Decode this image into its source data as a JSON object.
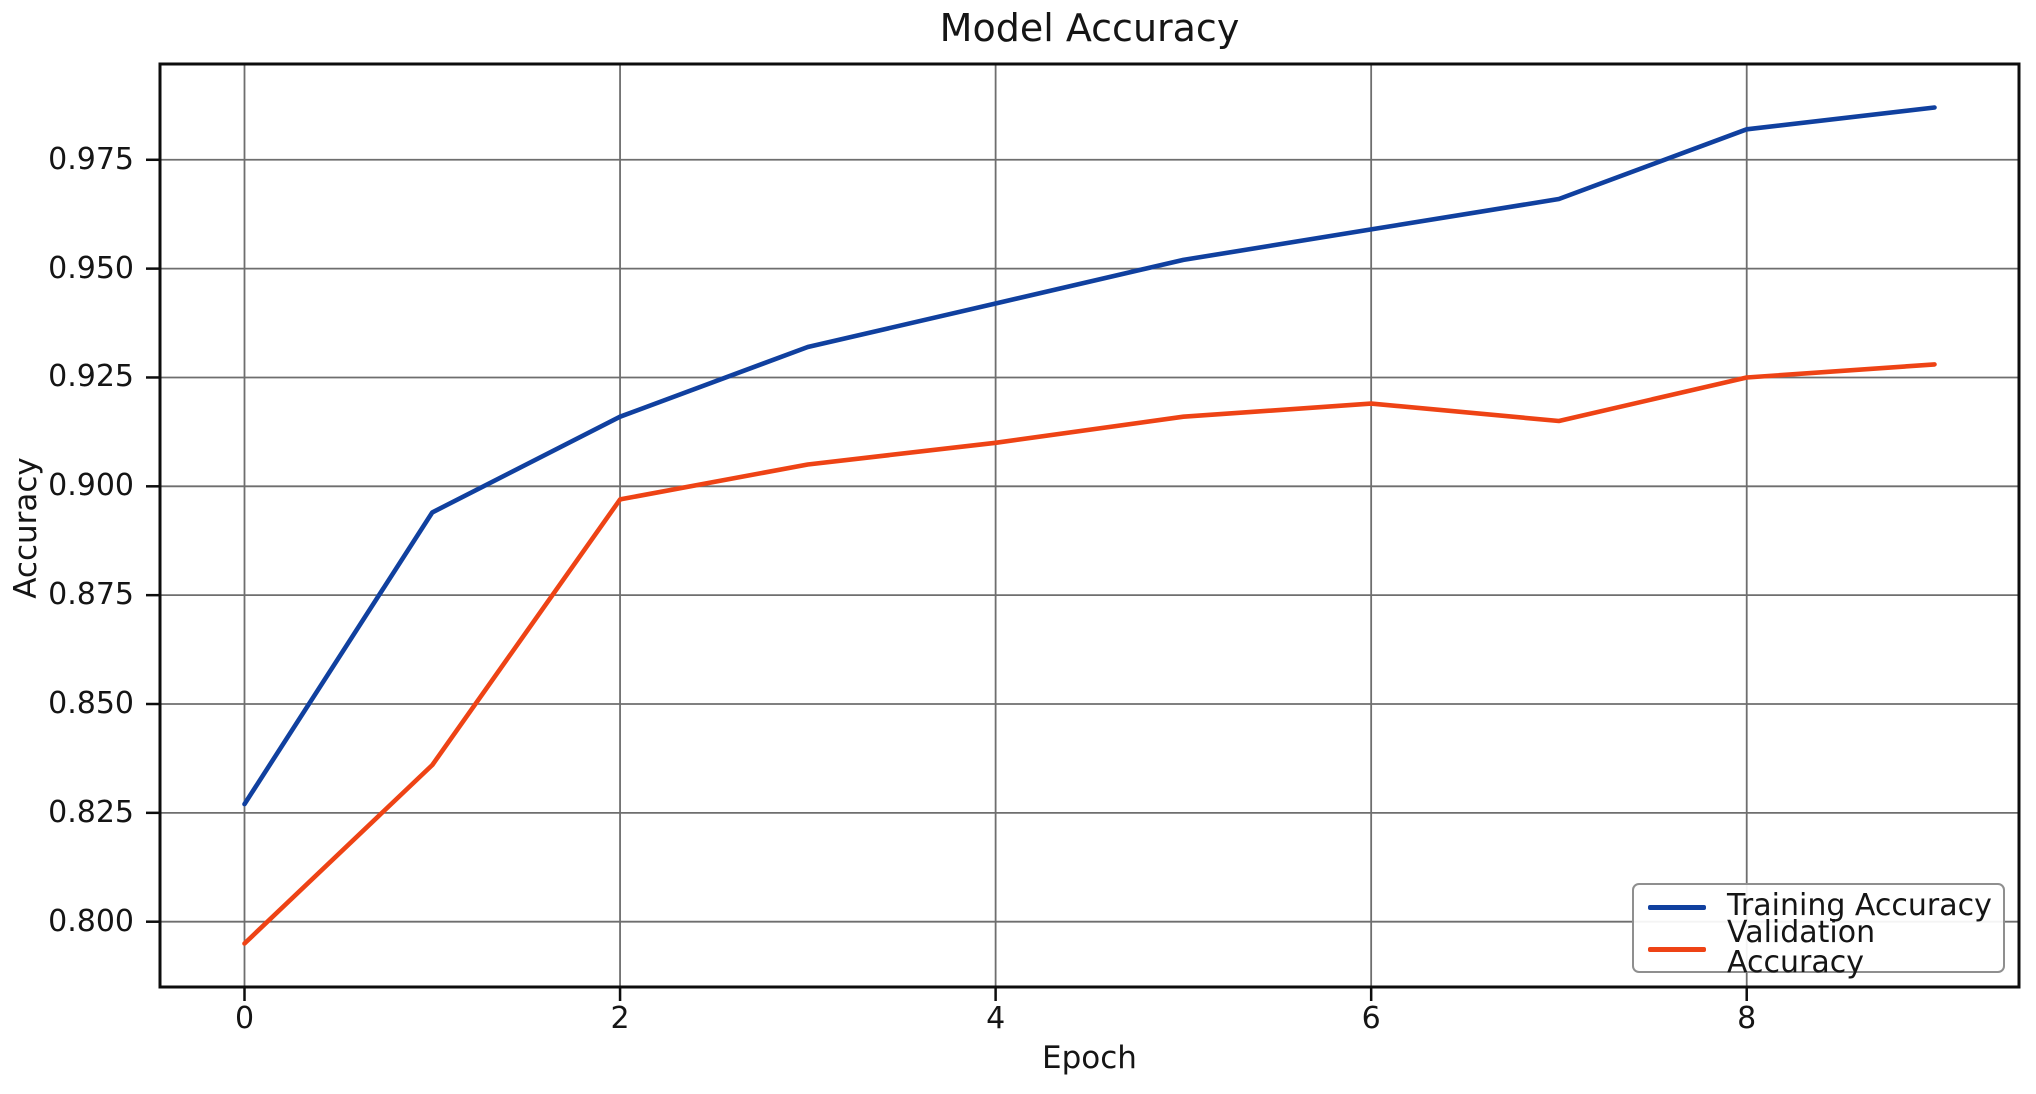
{
  "chart_data": {
    "type": "line",
    "title": "Model Accuracy",
    "xlabel": "Epoch",
    "ylabel": "Accuracy",
    "x": [
      0,
      1,
      2,
      3,
      4,
      5,
      6,
      7,
      8,
      9
    ],
    "series": [
      {
        "name": "Training Accuracy",
        "color": "#10409f",
        "values": [
          0.827,
          0.894,
          0.916,
          0.932,
          0.942,
          0.952,
          0.959,
          0.966,
          0.982,
          0.987
        ]
      },
      {
        "name": "Validation Accuracy",
        "color": "#ee4315",
        "values": [
          0.795,
          0.836,
          0.897,
          0.905,
          0.91,
          0.916,
          0.919,
          0.915,
          0.925,
          0.928
        ]
      }
    ],
    "xtick_values": [
      0,
      2,
      4,
      6,
      8
    ],
    "xtick_labels": [
      "0",
      "2",
      "4",
      "6",
      "8"
    ],
    "ytick_values": [
      0.8,
      0.825,
      0.85,
      0.875,
      0.9,
      0.925,
      0.95,
      0.975
    ],
    "ytick_labels": [
      "0.800",
      "0.825",
      "0.850",
      "0.875",
      "0.900",
      "0.925",
      "0.950",
      "0.975"
    ],
    "xlim": [
      -0.45,
      9.45
    ],
    "ylim": [
      0.785,
      0.997
    ],
    "grid": true,
    "legend_position": "lower right",
    "grid_color": "#6e6e6e",
    "spine_color": "#0d0d0d"
  }
}
